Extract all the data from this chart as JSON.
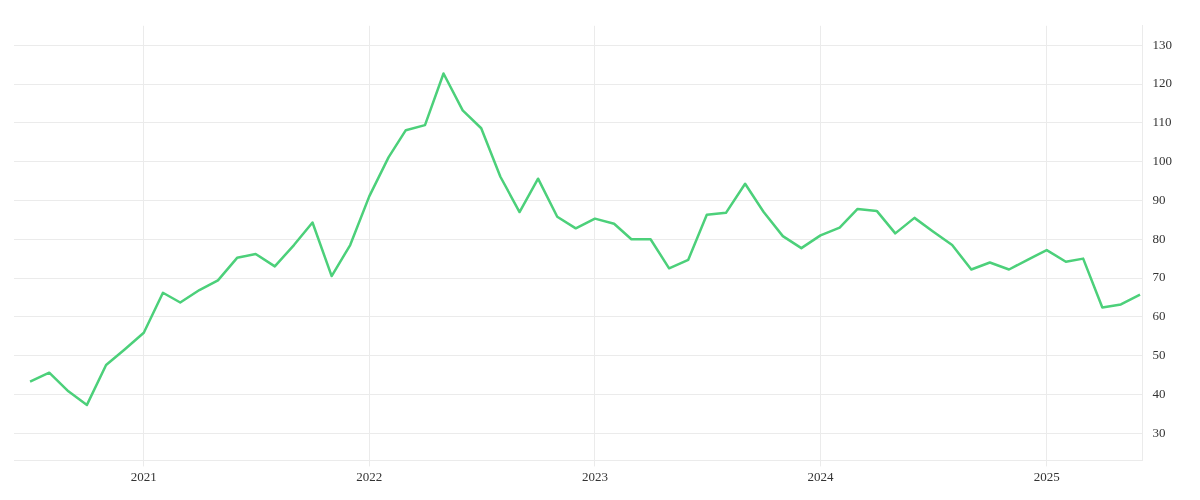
{
  "chart_data": {
    "type": "line",
    "x": [
      "2020-07",
      "2020-08",
      "2020-09",
      "2020-10",
      "2020-11",
      "2020-12",
      "2021-01",
      "2021-02",
      "2021-03",
      "2021-04",
      "2021-05",
      "2021-06",
      "2021-07",
      "2021-08",
      "2021-09",
      "2021-10",
      "2021-11",
      "2021-12",
      "2022-01",
      "2022-02",
      "2022-03",
      "2022-04",
      "2022-05",
      "2022-06",
      "2022-07",
      "2022-08",
      "2022-09",
      "2022-10",
      "2022-11",
      "2022-12",
      "2023-01",
      "2023-02",
      "2023-03",
      "2023-04",
      "2023-05",
      "2023-06",
      "2023-07",
      "2023-08",
      "2023-09",
      "2023-10",
      "2023-11",
      "2023-12",
      "2024-01",
      "2024-02",
      "2024-03",
      "2024-04",
      "2024-05",
      "2024-06",
      "2024-07",
      "2024-08",
      "2024-09",
      "2024-10",
      "2024-11",
      "2024-12",
      "2025-01",
      "2025-02",
      "2025-03",
      "2025-04",
      "2025-05",
      "2025-06"
    ],
    "series": [
      {
        "color": "#4cd07a",
        "values": [
          43.3,
          45.6,
          40.8,
          37.3,
          47.6,
          51.6,
          55.9,
          66.2,
          63.7,
          66.9,
          69.4,
          75.2,
          76.2,
          73.0,
          78.5,
          84.3,
          70.5,
          78.5,
          91.1,
          101.1,
          108.1,
          109.4,
          122.7,
          113.2,
          108.6,
          96.1,
          87.0,
          95.6,
          85.8,
          82.8,
          85.3,
          84.0,
          80.0,
          80.0,
          72.5,
          74.7,
          86.3,
          86.8,
          94.3,
          87.0,
          80.8,
          77.7,
          81.0,
          83.0,
          87.8,
          87.3,
          81.5,
          85.5,
          82.0,
          78.5,
          72.2,
          74.0,
          72.2,
          74.7,
          77.2,
          74.2,
          75.0,
          62.4,
          63.2,
          65.7
        ]
      }
    ],
    "xlim": [
      "2020-06-05",
      "2025-06-05"
    ],
    "xticks": [
      "2021",
      "2022",
      "2023",
      "2024",
      "2025"
    ],
    "ylim": [
      23,
      135
    ],
    "yticks": [
      30,
      40,
      50,
      60,
      70,
      80,
      90,
      100,
      110,
      120,
      130
    ],
    "grid": true,
    "legend": false,
    "marker": "none",
    "line_style": "solid"
  }
}
